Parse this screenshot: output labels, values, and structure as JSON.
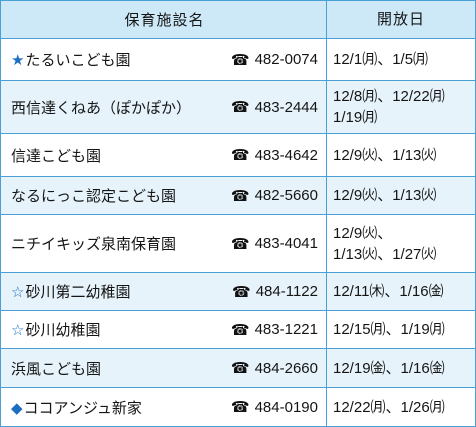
{
  "table": {
    "header": {
      "facility": "保育施設名",
      "open_days": "開放日"
    },
    "rows": [
      {
        "marker": "★",
        "name": "たるいこども園",
        "phone": "482-0074",
        "days": [
          "12/1㈪、1/5㈪"
        ]
      },
      {
        "name": "西信達くねあ（ぽかぽか）",
        "phone": "483-2444",
        "days": [
          "12/8㈪、12/22㈪",
          "1/19㈪"
        ]
      },
      {
        "name": "信達こども園",
        "phone": "483-4642",
        "days": [
          "12/9㈫、1/13㈫"
        ]
      },
      {
        "name": "なるにっこ認定こども園",
        "phone": "482-5660",
        "days": [
          "12/9㈫、1/13㈫"
        ]
      },
      {
        "name": "ニチイキッズ泉南保育園",
        "phone": "483-4041",
        "days": [
          "12/9㈫、",
          "1/13㈫、1/27㈫"
        ]
      },
      {
        "marker": "☆",
        "name": "砂川第二幼稚園",
        "phone": "484-1122",
        "days": [
          "12/11㈭、1/16㈮"
        ]
      },
      {
        "marker": "☆",
        "name": "砂川幼稚園",
        "phone": "483-1221",
        "days": [
          "12/15㈪、1/19㈪"
        ]
      },
      {
        "name": "浜風こども園",
        "phone": "484-2660",
        "days": [
          "12/19㈮、1/16㈮"
        ]
      },
      {
        "marker": "◆",
        "name": "ココアンジュ新家",
        "phone": "484-0190",
        "days": [
          "12/22㈪、1/26㈪"
        ]
      }
    ]
  },
  "icons": {
    "phone": "☎"
  },
  "colors": {
    "border": "#4a9fd4",
    "header_bg": "#cde8f7",
    "alt_row_bg": "#e6f3fb",
    "marker": "#1b6ec2"
  }
}
